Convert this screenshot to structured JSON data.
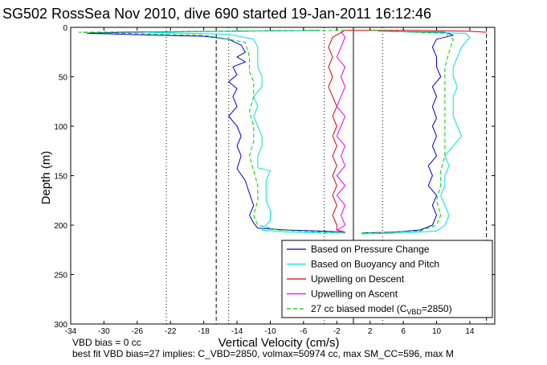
{
  "chart_data": {
    "type": "line",
    "title": "SG502 RossSea Nov 2010, dive 690 started 19-Jan-2011 16:12:46",
    "xlabel": "Vertical Velocity (cm/s)",
    "ylabel": "Depth (m)",
    "xlim": [
      -34,
      17
    ],
    "ylim": [
      0,
      300
    ],
    "y_reversed": true,
    "xticks": [
      -34,
      -30,
      -26,
      -22,
      -18,
      -14,
      -10,
      -6,
      -2,
      2,
      6,
      10,
      14
    ],
    "yticks": [
      0,
      50,
      100,
      150,
      200,
      250,
      300
    ],
    "legend_position": "bottom-right",
    "series": [
      {
        "name": "Based on Pressure Change",
        "color": "#0000cc",
        "style": "solid",
        "points": [
          [
            -4,
            3
          ],
          [
            -28,
            5
          ],
          [
            -32,
            6
          ],
          [
            -24,
            8
          ],
          [
            -18,
            9
          ],
          [
            -15,
            12
          ],
          [
            -13.5,
            18
          ],
          [
            -13,
            25
          ],
          [
            -14,
            30
          ],
          [
            -13,
            35
          ],
          [
            -14.5,
            40
          ],
          [
            -14,
            48
          ],
          [
            -15,
            55
          ],
          [
            -14,
            62
          ],
          [
            -14.5,
            70
          ],
          [
            -14,
            80
          ],
          [
            -15,
            90
          ],
          [
            -14,
            100
          ],
          [
            -13.5,
            110
          ],
          [
            -14,
            120
          ],
          [
            -13.5,
            130
          ],
          [
            -14,
            143
          ],
          [
            -13,
            155
          ],
          [
            -12.5,
            168
          ],
          [
            -12,
            180
          ],
          [
            -12.5,
            190
          ],
          [
            -12,
            198
          ],
          [
            -11.5,
            203
          ],
          [
            -8,
            205
          ],
          [
            -4,
            206
          ],
          [
            -1,
            207
          ]
        ]
      },
      {
        "name": "Based on Buoyancy and Pitch",
        "color": "#00e0e0",
        "style": "solid",
        "points": [
          [
            -4,
            3
          ],
          [
            -25,
            5
          ],
          [
            -15,
            7
          ],
          [
            -12,
            12
          ],
          [
            -11.5,
            20
          ],
          [
            -11.5,
            30
          ],
          [
            -11.5,
            40
          ],
          [
            -11,
            50
          ],
          [
            -11,
            60
          ],
          [
            -12,
            70
          ],
          [
            -11.5,
            80
          ],
          [
            -12,
            90
          ],
          [
            -11.5,
            100
          ],
          [
            -11,
            110
          ],
          [
            -11,
            120
          ],
          [
            -11.5,
            130
          ],
          [
            -11.5,
            142
          ],
          [
            -10,
            145
          ],
          [
            -10.5,
            155
          ],
          [
            -10.5,
            165
          ],
          [
            -10.5,
            175
          ],
          [
            -10,
            185
          ],
          [
            -10,
            195
          ],
          [
            -11,
            205
          ],
          [
            -8,
            207
          ],
          [
            -4,
            208
          ],
          [
            -1,
            208
          ]
        ]
      },
      {
        "name": "Upwelling on Descent",
        "color": "#dd0000",
        "style": "solid",
        "points": [
          [
            -1,
            3
          ],
          [
            -2.5,
            10
          ],
          [
            -3,
            20
          ],
          [
            -2.5,
            30
          ],
          [
            -3,
            40
          ],
          [
            -2.5,
            50
          ],
          [
            -3,
            60
          ],
          [
            -2.5,
            70
          ],
          [
            -2,
            80
          ],
          [
            -2.5,
            90
          ],
          [
            -2,
            100
          ],
          [
            -2.5,
            110
          ],
          [
            -2,
            120
          ],
          [
            -2.5,
            130
          ],
          [
            -2,
            140
          ],
          [
            -2.5,
            150
          ],
          [
            -2,
            160
          ],
          [
            -2.5,
            170
          ],
          [
            -2,
            180
          ],
          [
            -2.5,
            190
          ],
          [
            -2,
            200
          ],
          [
            -2,
            205
          ],
          [
            -1,
            207
          ]
        ]
      },
      {
        "name": "Upwelling on Ascent",
        "color": "#ee00ee",
        "style": "solid",
        "points": [
          [
            -1,
            208
          ],
          [
            -2,
            205
          ],
          [
            -1,
            200
          ],
          [
            -1.5,
            190
          ],
          [
            -1,
            180
          ],
          [
            -2,
            170
          ],
          [
            -1,
            160
          ],
          [
            -2,
            150
          ],
          [
            -1,
            140
          ],
          [
            -1.5,
            130
          ],
          [
            -1,
            120
          ],
          [
            -2,
            110
          ],
          [
            -1.5,
            100
          ],
          [
            -1,
            90
          ],
          [
            -2,
            80
          ],
          [
            -1.5,
            70
          ],
          [
            -1,
            60
          ],
          [
            -1.5,
            50
          ],
          [
            -1,
            40
          ],
          [
            -2,
            30
          ],
          [
            -1.5,
            20
          ],
          [
            -1,
            10
          ],
          [
            -1.5,
            4
          ]
        ]
      },
      {
        "name": "Based on Pressure Change",
        "color": "#0000cc",
        "style": "solid",
        "legend": false,
        "points": [
          [
            1,
            208
          ],
          [
            5,
            207
          ],
          [
            8,
            205
          ],
          [
            9.5,
            200
          ],
          [
            10,
            190
          ],
          [
            9.5,
            180
          ],
          [
            10,
            170
          ],
          [
            9,
            160
          ],
          [
            9.5,
            150
          ],
          [
            9,
            140
          ],
          [
            10,
            130
          ],
          [
            9.5,
            120
          ],
          [
            10,
            110
          ],
          [
            9.5,
            100
          ],
          [
            10,
            92
          ],
          [
            9.5,
            80
          ],
          [
            10,
            70
          ],
          [
            9.5,
            60
          ],
          [
            10.5,
            50
          ],
          [
            10,
            40
          ],
          [
            10,
            30
          ],
          [
            9.5,
            20
          ],
          [
            10,
            12
          ],
          [
            12,
            8
          ],
          [
            11,
            5
          ],
          [
            3,
            4
          ]
        ]
      },
      {
        "name": "Based on Buoyancy and Pitch",
        "color": "#00e0e0",
        "style": "solid",
        "legend": false,
        "points": [
          [
            1,
            209
          ],
          [
            6,
            208
          ],
          [
            10,
            206
          ],
          [
            11,
            200
          ],
          [
            11.5,
            190
          ],
          [
            11,
            180
          ],
          [
            10.5,
            170
          ],
          [
            11,
            160
          ],
          [
            11,
            150
          ],
          [
            11.5,
            140
          ],
          [
            11,
            130
          ],
          [
            12,
            120
          ],
          [
            13,
            110
          ],
          [
            12.5,
            100
          ],
          [
            12,
            90
          ],
          [
            12,
            80
          ],
          [
            12,
            70
          ],
          [
            12.5,
            60
          ],
          [
            12,
            50
          ],
          [
            12,
            40
          ],
          [
            12.5,
            30
          ],
          [
            13,
            20
          ],
          [
            14,
            10
          ],
          [
            13.5,
            6
          ],
          [
            3,
            4
          ]
        ]
      },
      {
        "name": "Upwelling on Descent",
        "color": "#dd0000",
        "style": "solid",
        "legend": false,
        "points": [
          [
            -1,
            3
          ],
          [
            8,
            3
          ],
          [
            14,
            4
          ],
          [
            16,
            5
          ]
        ]
      },
      {
        "name": "27 cc biased model (C_VBD=2850)",
        "color": "#00cc00",
        "style": "dashed",
        "points": [
          [
            -1,
            3
          ],
          [
            -33,
            5
          ],
          [
            -18,
            8
          ],
          [
            -13,
            15
          ],
          [
            -12.5,
            30
          ],
          [
            -12.5,
            45
          ],
          [
            -12,
            55
          ],
          [
            -12,
            70
          ],
          [
            -12.5,
            85
          ],
          [
            -12,
            100
          ],
          [
            -12,
            115
          ],
          [
            -12.5,
            130
          ],
          [
            -12,
            145
          ],
          [
            -11.5,
            160
          ],
          [
            -11.5,
            175
          ],
          [
            -12,
            190
          ],
          [
            -11.5,
            200
          ],
          [
            -9,
            205
          ],
          [
            -4,
            207
          ],
          [
            -1,
            207
          ]
        ]
      },
      {
        "name": "27 cc biased model (C_VBD=2850)",
        "color": "#00cc00",
        "style": "dashed",
        "legend": false,
        "points": [
          [
            1,
            208
          ],
          [
            8,
            206
          ],
          [
            10,
            200
          ],
          [
            10.5,
            190
          ],
          [
            10,
            175
          ],
          [
            10.5,
            160
          ],
          [
            10.5,
            145
          ],
          [
            11,
            130
          ],
          [
            11,
            115
          ],
          [
            11,
            100
          ],
          [
            11,
            85
          ],
          [
            11,
            70
          ],
          [
            11,
            55
          ],
          [
            11,
            40
          ],
          [
            11.5,
            25
          ],
          [
            12,
            12
          ],
          [
            11,
            6
          ],
          [
            2,
            3
          ]
        ]
      }
    ],
    "reference_lines": [
      {
        "axis": "x",
        "value": -16.5,
        "style": "dashed",
        "color": "#000000"
      },
      {
        "axis": "x",
        "value": 16,
        "style": "dashed",
        "color": "#000000"
      },
      {
        "axis": "x",
        "value": 0,
        "style": "solid",
        "color": "#000000"
      },
      {
        "axis": "x",
        "value": -22.5,
        "style": "dotted",
        "color": "#000000"
      },
      {
        "axis": "x",
        "value": -15,
        "style": "dotted",
        "color": "#000000"
      },
      {
        "axis": "x",
        "value": -3.5,
        "style": "dotted",
        "color": "#000000"
      },
      {
        "axis": "x",
        "value": 3.5,
        "style": "dotted",
        "color": "#000000"
      }
    ],
    "legend": [
      {
        "label": "Based on Pressure Change",
        "color": "#0000cc",
        "style": "solid"
      },
      {
        "label": "Based on Buoyancy and Pitch",
        "color": "#00e0e0",
        "style": "solid"
      },
      {
        "label": "Upwelling on Descent",
        "color": "#dd0000",
        "style": "solid"
      },
      {
        "label": "Upwelling on Ascent",
        "color": "#ee00ee",
        "style": "solid"
      },
      {
        "label_main": "27 cc biased model (C",
        "label_sub": "VBD",
        "label_tail": "=2850)",
        "color": "#00cc00",
        "style": "dashed"
      }
    ],
    "footer_lines": [
      "VBD bias = 0 cc",
      "best fit VBD bias=27 implies: C_VBD=2850, volmax=50974 cc, max SM_CC=596, max M"
    ]
  }
}
